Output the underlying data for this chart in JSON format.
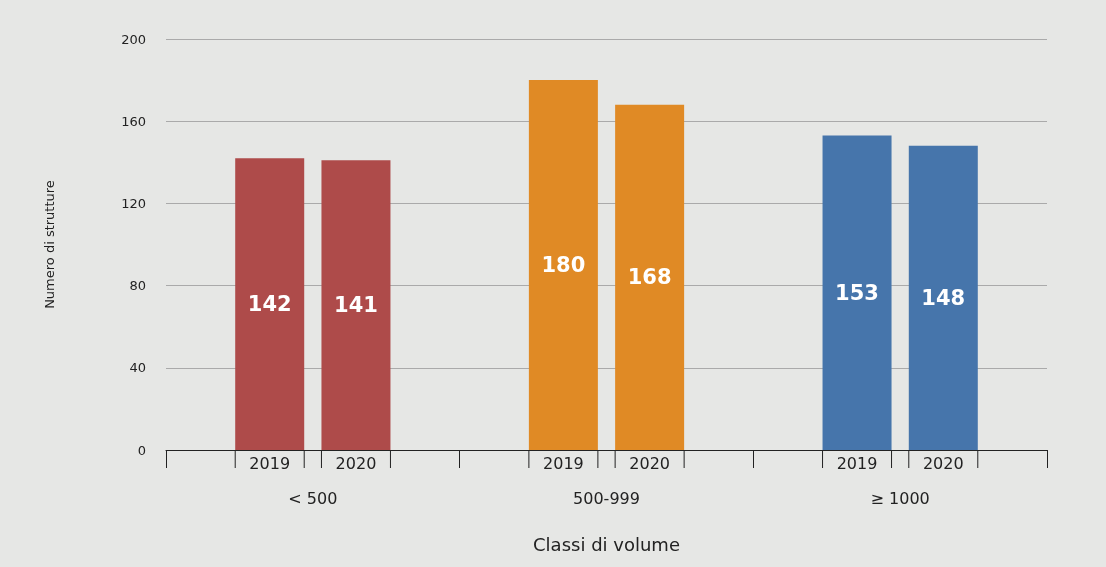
{
  "chart_data": {
    "type": "bar",
    "xlabel": "Classi di volume",
    "ylabel": "Numero di strutture",
    "categories": [
      "< 500",
      "500-999",
      "≥ 1000"
    ],
    "series": [
      {
        "name": "2019",
        "colors": [
          "#ae4b4a",
          "#e08a25",
          "#4675ab"
        ],
        "values": [
          142,
          180,
          153
        ]
      },
      {
        "name": "2020",
        "colors": [
          "#ae4b4a",
          "#e08a25",
          "#4675ab"
        ],
        "values": [
          141,
          168,
          148
        ]
      }
    ],
    "ylim": [
      0,
      200
    ],
    "yticks": [
      0,
      40,
      80,
      120,
      160,
      200
    ],
    "grid": "y",
    "data_labels": true
  }
}
